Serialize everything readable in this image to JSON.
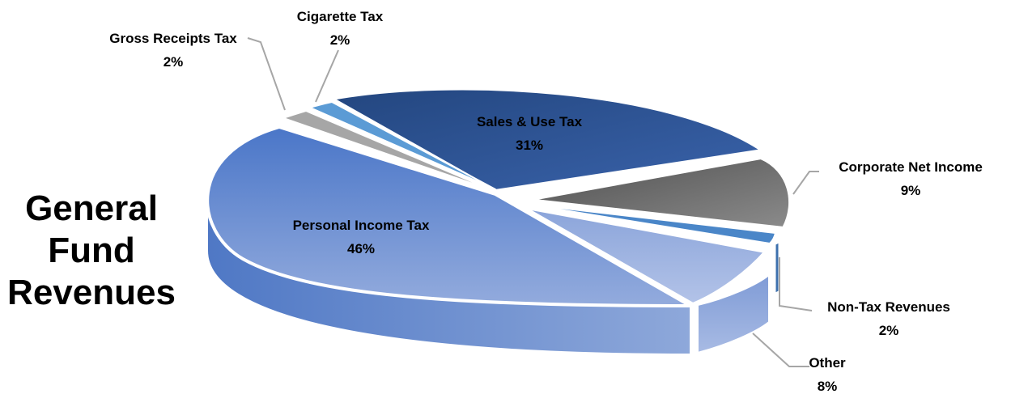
{
  "title_lines": [
    "General",
    "Fund",
    "Revenues"
  ],
  "colors": {
    "personal": "#5b83cc",
    "sales": "#2f5597",
    "corporate": "#6a6a6a",
    "nontax": "#4a86c8",
    "other": "#8fa9dc",
    "gross": "#a6a6a6",
    "cigarette": "#5b9bd5",
    "leader": "#a6a6a6"
  },
  "chart_data": {
    "type": "pie",
    "style": "3d-exploded",
    "slices": [
      {
        "key": "sales",
        "label": "Sales & Use Tax",
        "value": 31,
        "value_label": "31%"
      },
      {
        "key": "corporate",
        "label": "Corporate Net Income",
        "value": 9,
        "value_label": "9%"
      },
      {
        "key": "nontax",
        "label": "Non-Tax Revenues",
        "value": 2,
        "value_label": "2%"
      },
      {
        "key": "other",
        "label": "Other",
        "value": 8,
        "value_label": "8%"
      },
      {
        "key": "personal",
        "label": "Personal Income Tax",
        "value": 46,
        "value_label": "46%"
      },
      {
        "key": "gross",
        "label": "Gross Receipts Tax",
        "value": 2,
        "value_label": "2%"
      },
      {
        "key": "cigarette",
        "label": "Cigarette Tax",
        "value": 2,
        "value_label": "2%"
      }
    ]
  }
}
